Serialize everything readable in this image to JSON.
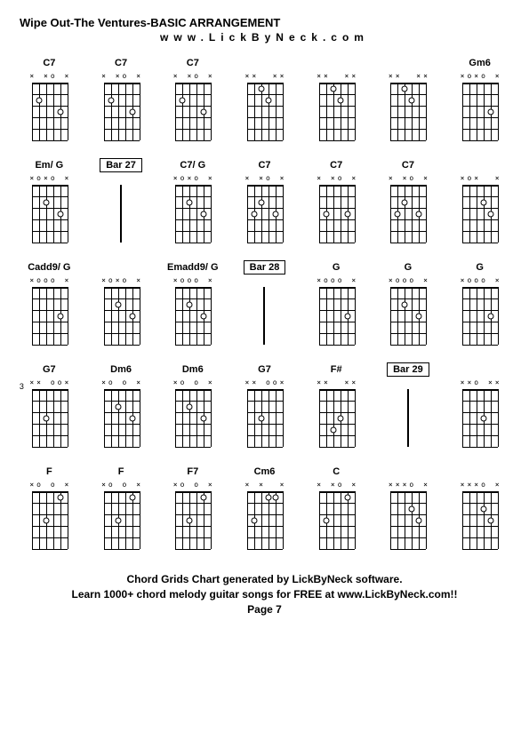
{
  "title": "Wipe Out-The Ventures-BASIC ARRANGEMENT",
  "subtitle": "www.LickByNeck.com",
  "footer_line1": "Chord Grids Chart generated by LickByNeck software.",
  "footer_line2": "Learn 1000+ chord melody guitar songs for FREE at www.LickByNeck.com!!",
  "footer_page": "Page 7",
  "colors": {
    "bg": "#ffffff",
    "fg": "#000000"
  },
  "string_count": 6,
  "fret_count": 5,
  "chords": [
    {
      "label": "C7",
      "top": [
        "x",
        " ",
        "x",
        "o",
        " ",
        "x"
      ],
      "dots": [
        [
          5,
          2
        ],
        [
          2,
          3
        ]
      ]
    },
    {
      "label": "C7",
      "top": [
        "x",
        " ",
        "x",
        "o",
        " ",
        "x"
      ],
      "dots": [
        [
          5,
          2
        ],
        [
          2,
          3
        ]
      ]
    },
    {
      "label": "C7",
      "top": [
        "x",
        " ",
        "x",
        "o",
        " ",
        "x"
      ],
      "dots": [
        [
          5,
          2
        ],
        [
          2,
          3
        ]
      ]
    },
    {
      "label": "",
      "top": [
        "x",
        "x",
        " ",
        " ",
        "x",
        "x"
      ],
      "dots": [
        [
          4,
          1
        ],
        [
          3,
          2
        ]
      ]
    },
    {
      "label": "",
      "top": [
        "x",
        "x",
        " ",
        " ",
        "x",
        "x"
      ],
      "dots": [
        [
          4,
          1
        ],
        [
          3,
          2
        ]
      ]
    },
    {
      "label": "",
      "top": [
        "x",
        "x",
        " ",
        " ",
        "x",
        "x"
      ],
      "dots": [
        [
          4,
          1
        ],
        [
          3,
          2
        ]
      ]
    },
    {
      "label": "Gm6",
      "top": [
        "x",
        "o",
        "x",
        "o",
        " ",
        "x"
      ],
      "dots": [
        [
          2,
          3
        ]
      ]
    },
    {
      "label": "Em/ G",
      "top": [
        "x",
        "o",
        "x",
        "o",
        " ",
        "x"
      ],
      "dots": [
        [
          4,
          2
        ],
        [
          2,
          3
        ]
      ]
    },
    {
      "label": "Bar 27",
      "is_bar": true
    },
    {
      "label": "C7/ G",
      "top": [
        "x",
        "o",
        "x",
        "o",
        " ",
        "x"
      ],
      "dots": [
        [
          4,
          2
        ],
        [
          2,
          3
        ]
      ]
    },
    {
      "label": "C7",
      "top": [
        "x",
        " ",
        "x",
        "o",
        " ",
        "x"
      ],
      "dots": [
        [
          5,
          3
        ],
        [
          4,
          2
        ],
        [
          2,
          3
        ]
      ]
    },
    {
      "label": "C7",
      "top": [
        "x",
        " ",
        "x",
        "o",
        " ",
        "x"
      ],
      "dots": [
        [
          5,
          3
        ],
        [
          2,
          3
        ]
      ]
    },
    {
      "label": "C7",
      "top": [
        "x",
        " ",
        "x",
        "o",
        " ",
        "x"
      ],
      "dots": [
        [
          5,
          3
        ],
        [
          4,
          2
        ],
        [
          2,
          3
        ]
      ]
    },
    {
      "label": "",
      "top": [
        "x",
        "o",
        "x",
        " ",
        " ",
        "x"
      ],
      "dots": [
        [
          3,
          2
        ],
        [
          2,
          3
        ]
      ]
    },
    {
      "label": "Cadd9/ G",
      "top": [
        "x",
        "o",
        "o",
        "o",
        " ",
        "x"
      ],
      "dots": [
        [
          2,
          3
        ]
      ]
    },
    {
      "label": "",
      "top": [
        "x",
        "o",
        "x",
        "o",
        " ",
        "x"
      ],
      "dots": [
        [
          4,
          2
        ],
        [
          2,
          3
        ]
      ]
    },
    {
      "label": "Emadd9/ G",
      "top": [
        "x",
        "o",
        "o",
        "o",
        " ",
        "x"
      ],
      "dots": [
        [
          4,
          2
        ],
        [
          2,
          3
        ]
      ]
    },
    {
      "label": "Bar 28",
      "is_bar": true
    },
    {
      "label": "G",
      "top": [
        "x",
        "o",
        "o",
        "o",
        " ",
        "x"
      ],
      "dots": [
        [
          2,
          3
        ]
      ]
    },
    {
      "label": "G",
      "top": [
        "x",
        "o",
        "o",
        "o",
        " ",
        "x"
      ],
      "dots": [
        [
          4,
          2
        ],
        [
          2,
          3
        ]
      ]
    },
    {
      "label": "G",
      "top": [
        "x",
        "o",
        "o",
        "o",
        " ",
        "x"
      ],
      "dots": [
        [
          2,
          3
        ]
      ]
    },
    {
      "label": "G7",
      "top": [
        "x",
        "x",
        " ",
        "o",
        "o",
        "x"
      ],
      "dots": [
        [
          4,
          3
        ]
      ],
      "fret_pos": "3"
    },
    {
      "label": "Dm6",
      "top": [
        "x",
        "o",
        " ",
        "o",
        " ",
        "x"
      ],
      "dots": [
        [
          4,
          2
        ],
        [
          2,
          3
        ]
      ]
    },
    {
      "label": "Dm6",
      "top": [
        "x",
        "o",
        " ",
        "o",
        " ",
        "x"
      ],
      "dots": [
        [
          4,
          2
        ],
        [
          2,
          3
        ]
      ]
    },
    {
      "label": "G7",
      "top": [
        "x",
        "x",
        " ",
        "o",
        "o",
        "x"
      ],
      "dots": [
        [
          4,
          3
        ]
      ]
    },
    {
      "label": "F#",
      "top": [
        "x",
        "x",
        " ",
        " ",
        "x",
        "x"
      ],
      "dots": [
        [
          4,
          4
        ],
        [
          3,
          3
        ]
      ]
    },
    {
      "label": "Bar 29",
      "is_bar": true
    },
    {
      "label": "",
      "top": [
        "x",
        "x",
        "o",
        " ",
        "x",
        "x"
      ],
      "dots": [
        [
          3,
          3
        ]
      ]
    },
    {
      "label": "F",
      "top": [
        "x",
        "o",
        " ",
        "o",
        " ",
        "x"
      ],
      "dots": [
        [
          4,
          3
        ],
        [
          2,
          1
        ]
      ]
    },
    {
      "label": "F",
      "top": [
        "x",
        "o",
        " ",
        "o",
        " ",
        "x"
      ],
      "dots": [
        [
          4,
          3
        ],
        [
          2,
          1
        ]
      ]
    },
    {
      "label": "F7",
      "top": [
        "x",
        "o",
        " ",
        "o",
        " ",
        "x"
      ],
      "dots": [
        [
          4,
          3
        ],
        [
          2,
          1
        ]
      ]
    },
    {
      "label": "Cm6",
      "top": [
        "x",
        " ",
        "x",
        " ",
        " ",
        "x"
      ],
      "dots": [
        [
          5,
          3
        ],
        [
          3,
          1
        ],
        [
          2,
          1
        ]
      ]
    },
    {
      "label": "C",
      "top": [
        "x",
        " ",
        "x",
        "o",
        " ",
        "x"
      ],
      "dots": [
        [
          5,
          3
        ],
        [
          2,
          1
        ]
      ]
    },
    {
      "label": "",
      "top": [
        "x",
        "x",
        "x",
        "o",
        " ",
        "x"
      ],
      "dots": [
        [
          3,
          2
        ],
        [
          2,
          3
        ]
      ]
    },
    {
      "label": "",
      "top": [
        "x",
        "x",
        "x",
        "o",
        " ",
        "x"
      ],
      "dots": [
        [
          3,
          2
        ],
        [
          2,
          3
        ]
      ]
    }
  ]
}
